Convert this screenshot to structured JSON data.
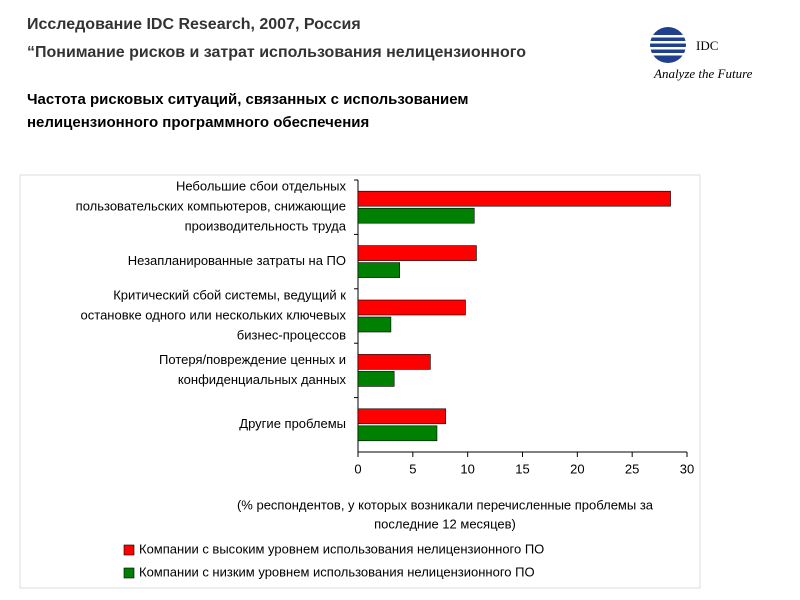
{
  "header": {
    "title": "Исследование IDC Research, 2007, Россия",
    "subtitle": "“Понимание рисков и затрат использования нелицензионного"
  },
  "logo": {
    "name": "IDC",
    "tagline": "Analyze the Future"
  },
  "chart_data": {
    "type": "bar",
    "orientation": "horizontal",
    "title": "Частота рисковых ситуаций, связанных с использованием нелицензионного программного обеспечения",
    "categories": [
      [
        "Небольшие сбои отдельных",
        "пользовательских компьютеров, снижающие",
        "производительность труда"
      ],
      [
        "Незапланированные затраты на ПО"
      ],
      [
        "Критический сбой системы, ведущий к",
        "остановке одного или нескольких ключевых",
        "бизнес-процессов"
      ],
      [
        "Потеря/повреждение ценных и",
        "конфиденциальных данных"
      ],
      [
        "Другие проблемы"
      ]
    ],
    "series": [
      {
        "name": "Компании с высоким уровнем использования нелицензионного ПО",
        "color": "#ff0000",
        "values": [
          28.5,
          10.8,
          9.8,
          6.6,
          8.0
        ]
      },
      {
        "name": "Компании с низким уровнем использования нелицензионного ПО",
        "color": "#008000",
        "values": [
          10.6,
          3.8,
          3.0,
          3.3,
          7.2
        ]
      }
    ],
    "xlabel": [
      "(% респондентов, у которых возникали перечисленные проблемы за",
      "последние 12 месяцев)"
    ],
    "xlim": [
      0,
      30
    ],
    "xticks": [
      0,
      5,
      10,
      15,
      20,
      25,
      30
    ]
  }
}
